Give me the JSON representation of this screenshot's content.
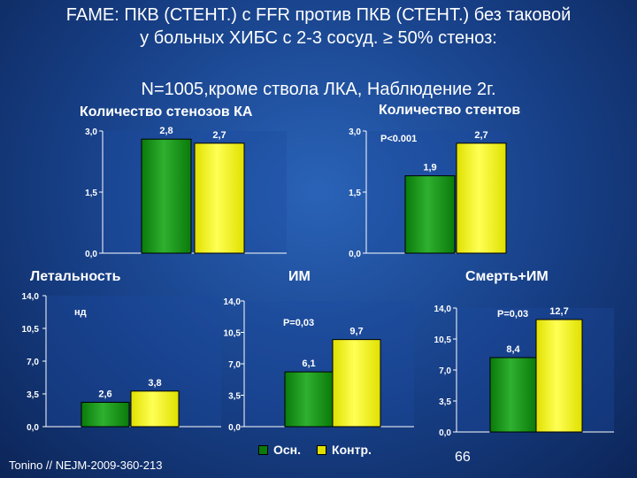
{
  "header": {
    "line1": "FAME: ПКВ (СТЕНТ.) с FFR   против ПКВ (СТЕНТ.) без таковой",
    "line2": "у больных ХИБС с 2-3 сосуд. ≥ 50% стеноз:",
    "line3": "N=1005,кроме ствола ЛКА, Наблюдение 2г."
  },
  "chart_data": [
    {
      "type": "bar",
      "title": "Количество стенозов КА",
      "series": [
        {
          "name": "Осн.",
          "color": "#0a7a0a",
          "values": [
            2.8
          ]
        },
        {
          "name": "Контр.",
          "color": "#e0e000",
          "values": [
            2.7
          ]
        }
      ],
      "value_labels": [
        "2,8",
        "2,7"
      ],
      "ylim": [
        0,
        3.0
      ],
      "ticks": [
        "3,0",
        "1,5",
        "0,0"
      ],
      "annotation": ""
    },
    {
      "type": "bar",
      "title": "Количество стентов",
      "series": [
        {
          "name": "Осн.",
          "color": "#0a7a0a",
          "values": [
            1.9
          ]
        },
        {
          "name": "Контр.",
          "color": "#e0e000",
          "values": [
            2.7
          ]
        }
      ],
      "value_labels": [
        "1,9",
        "2,7"
      ],
      "ylim": [
        0,
        3.0
      ],
      "ticks": [
        "3,0",
        "1,5",
        "0,0"
      ],
      "annotation": "P<0.001"
    },
    {
      "type": "bar",
      "title": "Летальность",
      "series": [
        {
          "name": "Осн.",
          "color": "#0a7a0a",
          "values": [
            2.6
          ]
        },
        {
          "name": "Контр.",
          "color": "#e0e000",
          "values": [
            3.8
          ]
        }
      ],
      "value_labels": [
        "2,6",
        "3,8"
      ],
      "ylim": [
        0,
        14.0
      ],
      "ticks": [
        "14,0",
        "10,5",
        "7,0",
        "3,5",
        "0,0"
      ],
      "annotation": "нд"
    },
    {
      "type": "bar",
      "title": "ИМ",
      "series": [
        {
          "name": "Осн.",
          "color": "#0a7a0a",
          "values": [
            6.1
          ]
        },
        {
          "name": "Контр.",
          "color": "#e0e000",
          "values": [
            9.7
          ]
        }
      ],
      "value_labels": [
        "6,1",
        "9,7"
      ],
      "ylim": [
        0,
        14.0
      ],
      "ticks": [
        "14,0",
        "10,5",
        "7,0",
        "3,5",
        "0,0"
      ],
      "annotation": "P=0,03"
    },
    {
      "type": "bar",
      "title": "Смерть+ИМ",
      "series": [
        {
          "name": "Осн.",
          "color": "#0a7a0a",
          "values": [
            8.4
          ]
        },
        {
          "name": "Контр.",
          "color": "#e0e000",
          "values": [
            12.7
          ]
        }
      ],
      "value_labels": [
        "8,4",
        "12,7"
      ],
      "ylim": [
        0,
        14.0
      ],
      "ticks": [
        "14,0",
        "10,5",
        "7,0",
        "3,5",
        "0,0"
      ],
      "annotation": "P=0,03"
    }
  ],
  "legend": {
    "items": [
      {
        "label": "Осн.",
        "color": "#0a7a0a"
      },
      {
        "label": "Контр.",
        "color": "#e0e000"
      }
    ]
  },
  "footer": {
    "citation": "Tonino // NEJM-2009-360-213",
    "page_number": "66"
  }
}
